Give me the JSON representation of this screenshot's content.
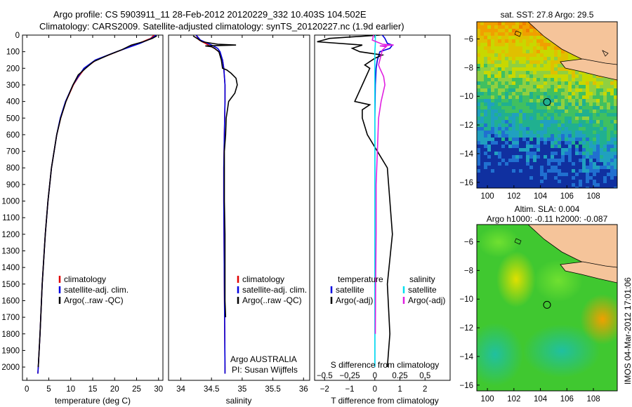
{
  "title_line1": "Argo profile: CS 5903911_11 28-Feb-2012 20120229_332 10.403S 104.502E",
  "title_line2": "Climatology: CARS2009. Satellite-adjusted climatology: synTS_20120227.nc (1.9d earlier)",
  "colors": {
    "climatology": "#e00000",
    "satellite": "#0000e0",
    "argo": "#000000",
    "sat_salinity": "#00e0f0",
    "sal_adj": "#e020e0",
    "land": "#f5c49a"
  },
  "chart_data": [
    {
      "type": "line",
      "name": "temperature-profile",
      "xlabel": "temperature (deg C)",
      "ylabel": "",
      "xlim": [
        -1,
        31
      ],
      "ylim": [
        2080,
        0
      ],
      "x_ticks": [
        0,
        5,
        10,
        15,
        20,
        25,
        30
      ],
      "y_ticks": [
        0,
        100,
        200,
        300,
        400,
        500,
        600,
        700,
        800,
        900,
        1000,
        1100,
        1200,
        1300,
        1400,
        1500,
        1600,
        1700,
        1800,
        1900,
        2000
      ],
      "legend": [
        "climatology",
        "satellite-adj. clim.",
        "Argo(..raw -QC)"
      ],
      "series": [
        {
          "name": "climatology",
          "depth": [
            0,
            20,
            50,
            80,
            100,
            150,
            200,
            250,
            300,
            400,
            500,
            600,
            800,
            1000,
            1200,
            1500,
            1800,
            2000,
            2040
          ],
          "values": [
            29.0,
            28.2,
            25.5,
            22.5,
            20.5,
            15.8,
            13.2,
            11.8,
            10.6,
            8.9,
            7.7,
            6.8,
            5.6,
            4.8,
            4.2,
            3.5,
            3.0,
            2.6,
            2.5
          ]
        },
        {
          "name": "satellite-adj. clim.",
          "depth": [
            0,
            20,
            50,
            80,
            100,
            150,
            200,
            250,
            300,
            400,
            500,
            600,
            800,
            1000,
            1200,
            1500,
            1800,
            2000,
            2040
          ],
          "values": [
            29.5,
            28.4,
            25.8,
            22.6,
            20.4,
            15.6,
            13.0,
            11.7,
            10.5,
            8.8,
            7.6,
            6.8,
            5.6,
            4.8,
            4.2,
            3.5,
            3.0,
            2.6,
            2.5
          ]
        },
        {
          "name": "Argo(..raw -QC)",
          "depth": [
            5,
            20,
            40,
            60,
            90,
            120,
            160,
            200,
            240,
            300,
            400,
            500,
            600,
            800,
            1000,
            1200,
            1500,
            1800,
            2000
          ],
          "values": [
            29.6,
            28.6,
            26.5,
            23.8,
            21.5,
            18.6,
            15.2,
            13.4,
            11.7,
            10.5,
            8.9,
            7.7,
            6.8,
            5.6,
            4.8,
            4.2,
            3.5,
            3.0,
            2.6
          ]
        }
      ]
    },
    {
      "type": "line",
      "name": "salinity-profile",
      "xlabel": "salinity",
      "ylabel": "",
      "xlim": [
        33.8,
        36.1
      ],
      "ylim": [
        2080,
        0
      ],
      "x_ticks": [
        34,
        34.5,
        35,
        35.5,
        36
      ],
      "legend": [
        "climatology",
        "satellite-adj. clim.",
        "Argo(..raw -QC)"
      ],
      "annotation": [
        "Argo AUSTRALIA",
        "PI: Susan Wijffels"
      ],
      "series": [
        {
          "name": "climatology",
          "depth": [
            0,
            30,
            60,
            80,
            100,
            150,
            200,
            300,
            400,
            600,
            800,
            1000,
            1500,
            2000,
            2040
          ],
          "values": [
            34.25,
            34.3,
            34.45,
            34.55,
            34.62,
            34.68,
            34.7,
            34.72,
            34.72,
            34.71,
            34.7,
            34.7,
            34.71,
            34.72,
            34.72
          ]
        },
        {
          "name": "satellite-adj. clim.",
          "depth": [
            0,
            30,
            60,
            80,
            100,
            150,
            200,
            300,
            400,
            600,
            800,
            1000,
            1500,
            2000,
            2040
          ],
          "values": [
            34.25,
            34.32,
            34.5,
            34.6,
            34.64,
            34.68,
            34.7,
            34.72,
            34.72,
            34.71,
            34.7,
            34.7,
            34.71,
            34.72,
            34.72
          ]
        },
        {
          "name": "Argo(..raw -QC)",
          "depth": [
            5,
            40,
            55,
            60,
            65,
            70,
            80,
            100,
            150,
            200,
            210,
            230,
            260,
            300,
            350,
            400,
            450,
            500,
            600,
            700,
            800,
            1000,
            1200,
            1400,
            1600,
            1700
          ],
          "values": [
            34.2,
            34.35,
            34.6,
            34.9,
            34.4,
            34.5,
            34.55,
            34.62,
            34.66,
            34.68,
            34.75,
            34.82,
            34.9,
            34.92,
            34.88,
            34.78,
            34.76,
            34.74,
            34.73,
            34.71,
            34.71,
            34.71,
            34.72,
            34.72,
            34.72,
            34.73
          ]
        }
      ]
    },
    {
      "type": "line",
      "name": "difference-profile",
      "xlabel": "T difference from climatology",
      "x2label": "S difference from climatology",
      "xlim": [
        -2.4,
        3.0
      ],
      "ylim": [
        2080,
        0
      ],
      "x_ticks": [
        -2,
        -1,
        0,
        1,
        2
      ],
      "x_ticklabels": [
        "−2",
        "−1",
        "0",
        "1",
        "2"
      ],
      "x2_ticks": [
        -0.5,
        -0.25,
        0,
        0.25,
        0.5
      ],
      "x2_ticklabels": [
        "−0.5",
        "−0.25",
        "0",
        "0.25",
        "0.5"
      ],
      "legend": {
        "temperature": "temperature",
        "salinity": "salinity",
        "satellite": "satellite",
        "argo": "Argo(-adj)"
      },
      "series": [
        {
          "name": "temperature satellite",
          "depth": [
            0,
            20,
            50,
            60,
            80,
            100,
            150,
            200,
            300,
            500,
            1000,
            2000
          ],
          "values": [
            0.3,
            0.4,
            0.5,
            0.7,
            0.6,
            0.2,
            0.1,
            0.05,
            0.02,
            0.0,
            0.0,
            0.0
          ]
        },
        {
          "name": "temperature Argo(-adj)",
          "depth": [
            0,
            20,
            40,
            60,
            80,
            100,
            120,
            140,
            160,
            180,
            200,
            300,
            400,
            420,
            450,
            500,
            600,
            800,
            1000,
            1200,
            1500,
            1800,
            2000
          ],
          "values": [
            0.2,
            -1.8,
            -2.3,
            -0.5,
            -0.9,
            -0.6,
            0.3,
            0.0,
            -0.2,
            -0.4,
            -0.2,
            -0.5,
            -0.8,
            -0.2,
            -0.5,
            -0.5,
            -0.3,
            0.5,
            0.6,
            0.7,
            0.5,
            0.6,
            0.5
          ]
        },
        {
          "name": "salinity satellite",
          "depth": [
            0,
            50,
            100,
            200,
            300,
            500,
            1000,
            1500,
            2000
          ],
          "values": [
            0.02,
            0.02,
            0.0,
            0.0,
            0.0,
            0.0,
            0.0,
            0.0,
            0.0
          ]
        },
        {
          "name": "salinity Argo(-adj)",
          "depth": [
            0,
            30,
            55,
            60,
            65,
            70,
            90,
            120,
            180,
            200,
            250,
            300,
            400,
            500,
            700,
            900,
            1200,
            1500,
            1800
          ],
          "values": [
            -0.05,
            -0.1,
            0.3,
            0.75,
            0.2,
            0.45,
            0.3,
            0.25,
            0.15,
            0.2,
            0.35,
            0.4,
            0.25,
            0.15,
            0.1,
            0.05,
            0.05,
            0.03,
            0.02
          ]
        }
      ]
    },
    {
      "type": "heatmap",
      "name": "sst-map",
      "title": "sat. SST: 27.8 Argo: 29.5",
      "xlim": [
        99.2,
        109.8
      ],
      "ylim": [
        -16.4,
        -4.8
      ],
      "x_ticks": [
        100,
        102,
        104,
        106,
        108
      ],
      "y_ticks": [
        -6,
        -8,
        -10,
        -12,
        -14,
        -16
      ],
      "marker": {
        "lon": 104.5,
        "lat": -10.4
      }
    },
    {
      "type": "heatmap",
      "name": "sla-map",
      "title": "Altim. SLA: 0.004",
      "subtitle": "Argo h1000: -0.11 h2000: -0.087",
      "xlim": [
        99.2,
        109.8
      ],
      "ylim": [
        -16.4,
        -4.8
      ],
      "x_ticks": [
        100,
        102,
        104,
        106,
        108
      ],
      "y_ticks": [
        -6,
        -8,
        -10,
        -12,
        -14,
        -16
      ],
      "marker": {
        "lon": 104.5,
        "lat": -10.4
      }
    }
  ],
  "footer_stamp": "IMOS 04-Mar-2012 17:01:06"
}
